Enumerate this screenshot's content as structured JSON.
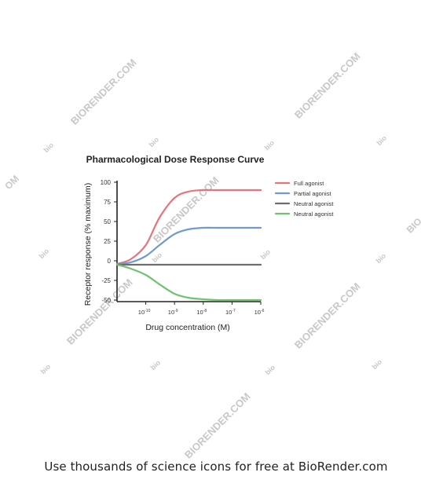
{
  "footer": {
    "text": "Use thousands of science icons for free at BioRender.com"
  },
  "watermarks": {
    "long": "BIORENDER.COM",
    "short": "bio",
    "partial_left": "OM",
    "partial_right": "BIO",
    "color": "#c8c8c8"
  },
  "chart_data": {
    "type": "line",
    "title": "Pharmacological Dose Response Curve",
    "xlabel": "Drug concentration (M)",
    "ylabel": "Receptor response (% maximum)",
    "x_scale": "log",
    "xlim": [
      1e-11,
      1e-06
    ],
    "ylim": [
      -50,
      100
    ],
    "yticks": [
      100,
      75,
      50,
      25,
      0,
      -25,
      -50
    ],
    "xticks": [
      {
        "value": 1e-10,
        "base": "10",
        "exp": "-10"
      },
      {
        "value": 1e-09,
        "base": "10",
        "exp": "-9"
      },
      {
        "value": 1e-08,
        "base": "10",
        "exp": "-8"
      },
      {
        "value": 1e-07,
        "base": "10",
        "exp": "-7"
      },
      {
        "value": 1e-06,
        "base": "10",
        "exp": "-6"
      }
    ],
    "grid": false,
    "legend_position": "right",
    "x": [
      1e-11,
      3e-11,
      1e-10,
      3e-10,
      1e-09,
      3e-09,
      1e-08,
      3e-08,
      1e-07,
      3e-07,
      1e-06
    ],
    "series": [
      {
        "name": "Full agonist",
        "color": "#e8737b",
        "values": [
          -4,
          2,
          20,
          55,
          80,
          88,
          90,
          90,
          90,
          90,
          90
        ]
      },
      {
        "name": "Partial agonist",
        "color": "#6f9bd1",
        "values": [
          -4,
          -2,
          6,
          20,
          34,
          40,
          42,
          42,
          42,
          42,
          42
        ]
      },
      {
        "name": "Neutral agonist",
        "color": "#6e6e6e",
        "values": [
          -5,
          -5,
          -5,
          -5,
          -5,
          -5,
          -5,
          -5,
          -5,
          -5,
          -5
        ]
      },
      {
        "name": "Neutral agonist",
        "color": "#6fc36f",
        "values": [
          -5,
          -10,
          -18,
          -30,
          -42,
          -47,
          -49,
          -50,
          -50,
          -50,
          -50
        ]
      }
    ]
  }
}
